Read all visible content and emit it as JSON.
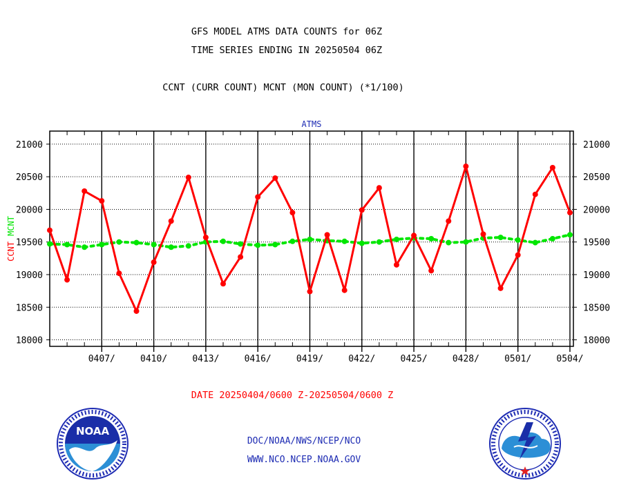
{
  "header": {
    "title_line1": "GFS MODEL ATMS DATA COUNTS for 06Z",
    "title_line2": "TIME SERIES ENDING IN 20250504 06Z",
    "subtitle": "CCNT (CURR COUNT) MCNT (MON COUNT) (*1/100)"
  },
  "footer": {
    "date_range": "DATE 20250404/0600 Z-20250504/0600 Z",
    "credits_line1": "DOC/NOAA/NWS/NCEP/NCO",
    "credits_line2": "WWW.NCO.NCEP.NOAA.GOV"
  },
  "logos": {
    "noaa": {
      "name": "noaa-logo",
      "text": "NOAA"
    },
    "nws": {
      "name": "national-weather-service-logo"
    }
  },
  "colors": {
    "ccnt": "#ff0000",
    "mcnt": "#00e600",
    "title_text": "#000000",
    "date_text": "#ff0000",
    "credits_text": "#1d2bb3",
    "panel_title": "#1d2bb3"
  },
  "chart_data": {
    "type": "line",
    "title": "ATMS",
    "ylabel_parts": [
      "CCNT",
      "MCNT"
    ],
    "xlabel": "",
    "ylim": [
      17900,
      21200
    ],
    "yticks": [
      18000,
      18500,
      19000,
      19500,
      20000,
      20500,
      21000
    ],
    "xlim": [
      0,
      30.2
    ],
    "xticks": [
      {
        "x": 3,
        "label": "0407/"
      },
      {
        "x": 6,
        "label": "0410/"
      },
      {
        "x": 9,
        "label": "0413/"
      },
      {
        "x": 12,
        "label": "0416/"
      },
      {
        "x": 15,
        "label": "0419/"
      },
      {
        "x": 18,
        "label": "0422/"
      },
      {
        "x": 21,
        "label": "0425/"
      },
      {
        "x": 24,
        "label": "0428/"
      },
      {
        "x": 27,
        "label": "0501/"
      },
      {
        "x": 30,
        "label": "0504/"
      }
    ],
    "grid": true,
    "x": [
      0,
      1,
      2,
      3,
      4,
      5,
      6,
      7,
      8,
      9,
      10,
      11,
      12,
      13,
      14,
      15,
      16,
      17,
      18,
      19,
      20,
      21,
      22,
      23,
      24,
      25,
      26,
      27,
      28,
      29,
      30
    ],
    "series": [
      {
        "name": "CCNT",
        "color": "#ff0000",
        "marker": "dot",
        "line": "solid",
        "values": [
          19680,
          18920,
          20280,
          20130,
          19020,
          18440,
          19190,
          19820,
          20490,
          19570,
          18860,
          19270,
          20190,
          20480,
          19950,
          18740,
          19610,
          18760,
          19990,
          20330,
          19150,
          19600,
          19060,
          19820,
          20660,
          19620,
          18790,
          19300,
          20230,
          20640,
          19950
        ]
      },
      {
        "name": "MCNT",
        "color": "#00e600",
        "marker": "dot",
        "line": "dashed",
        "values": [
          19470,
          19460,
          19420,
          19460,
          19500,
          19490,
          19460,
          19420,
          19440,
          19500,
          19510,
          19470,
          19450,
          19460,
          19510,
          19540,
          19520,
          19510,
          19480,
          19500,
          19540,
          19560,
          19550,
          19490,
          19500,
          19560,
          19570,
          19530,
          19490,
          19550,
          19610
        ]
      }
    ]
  }
}
